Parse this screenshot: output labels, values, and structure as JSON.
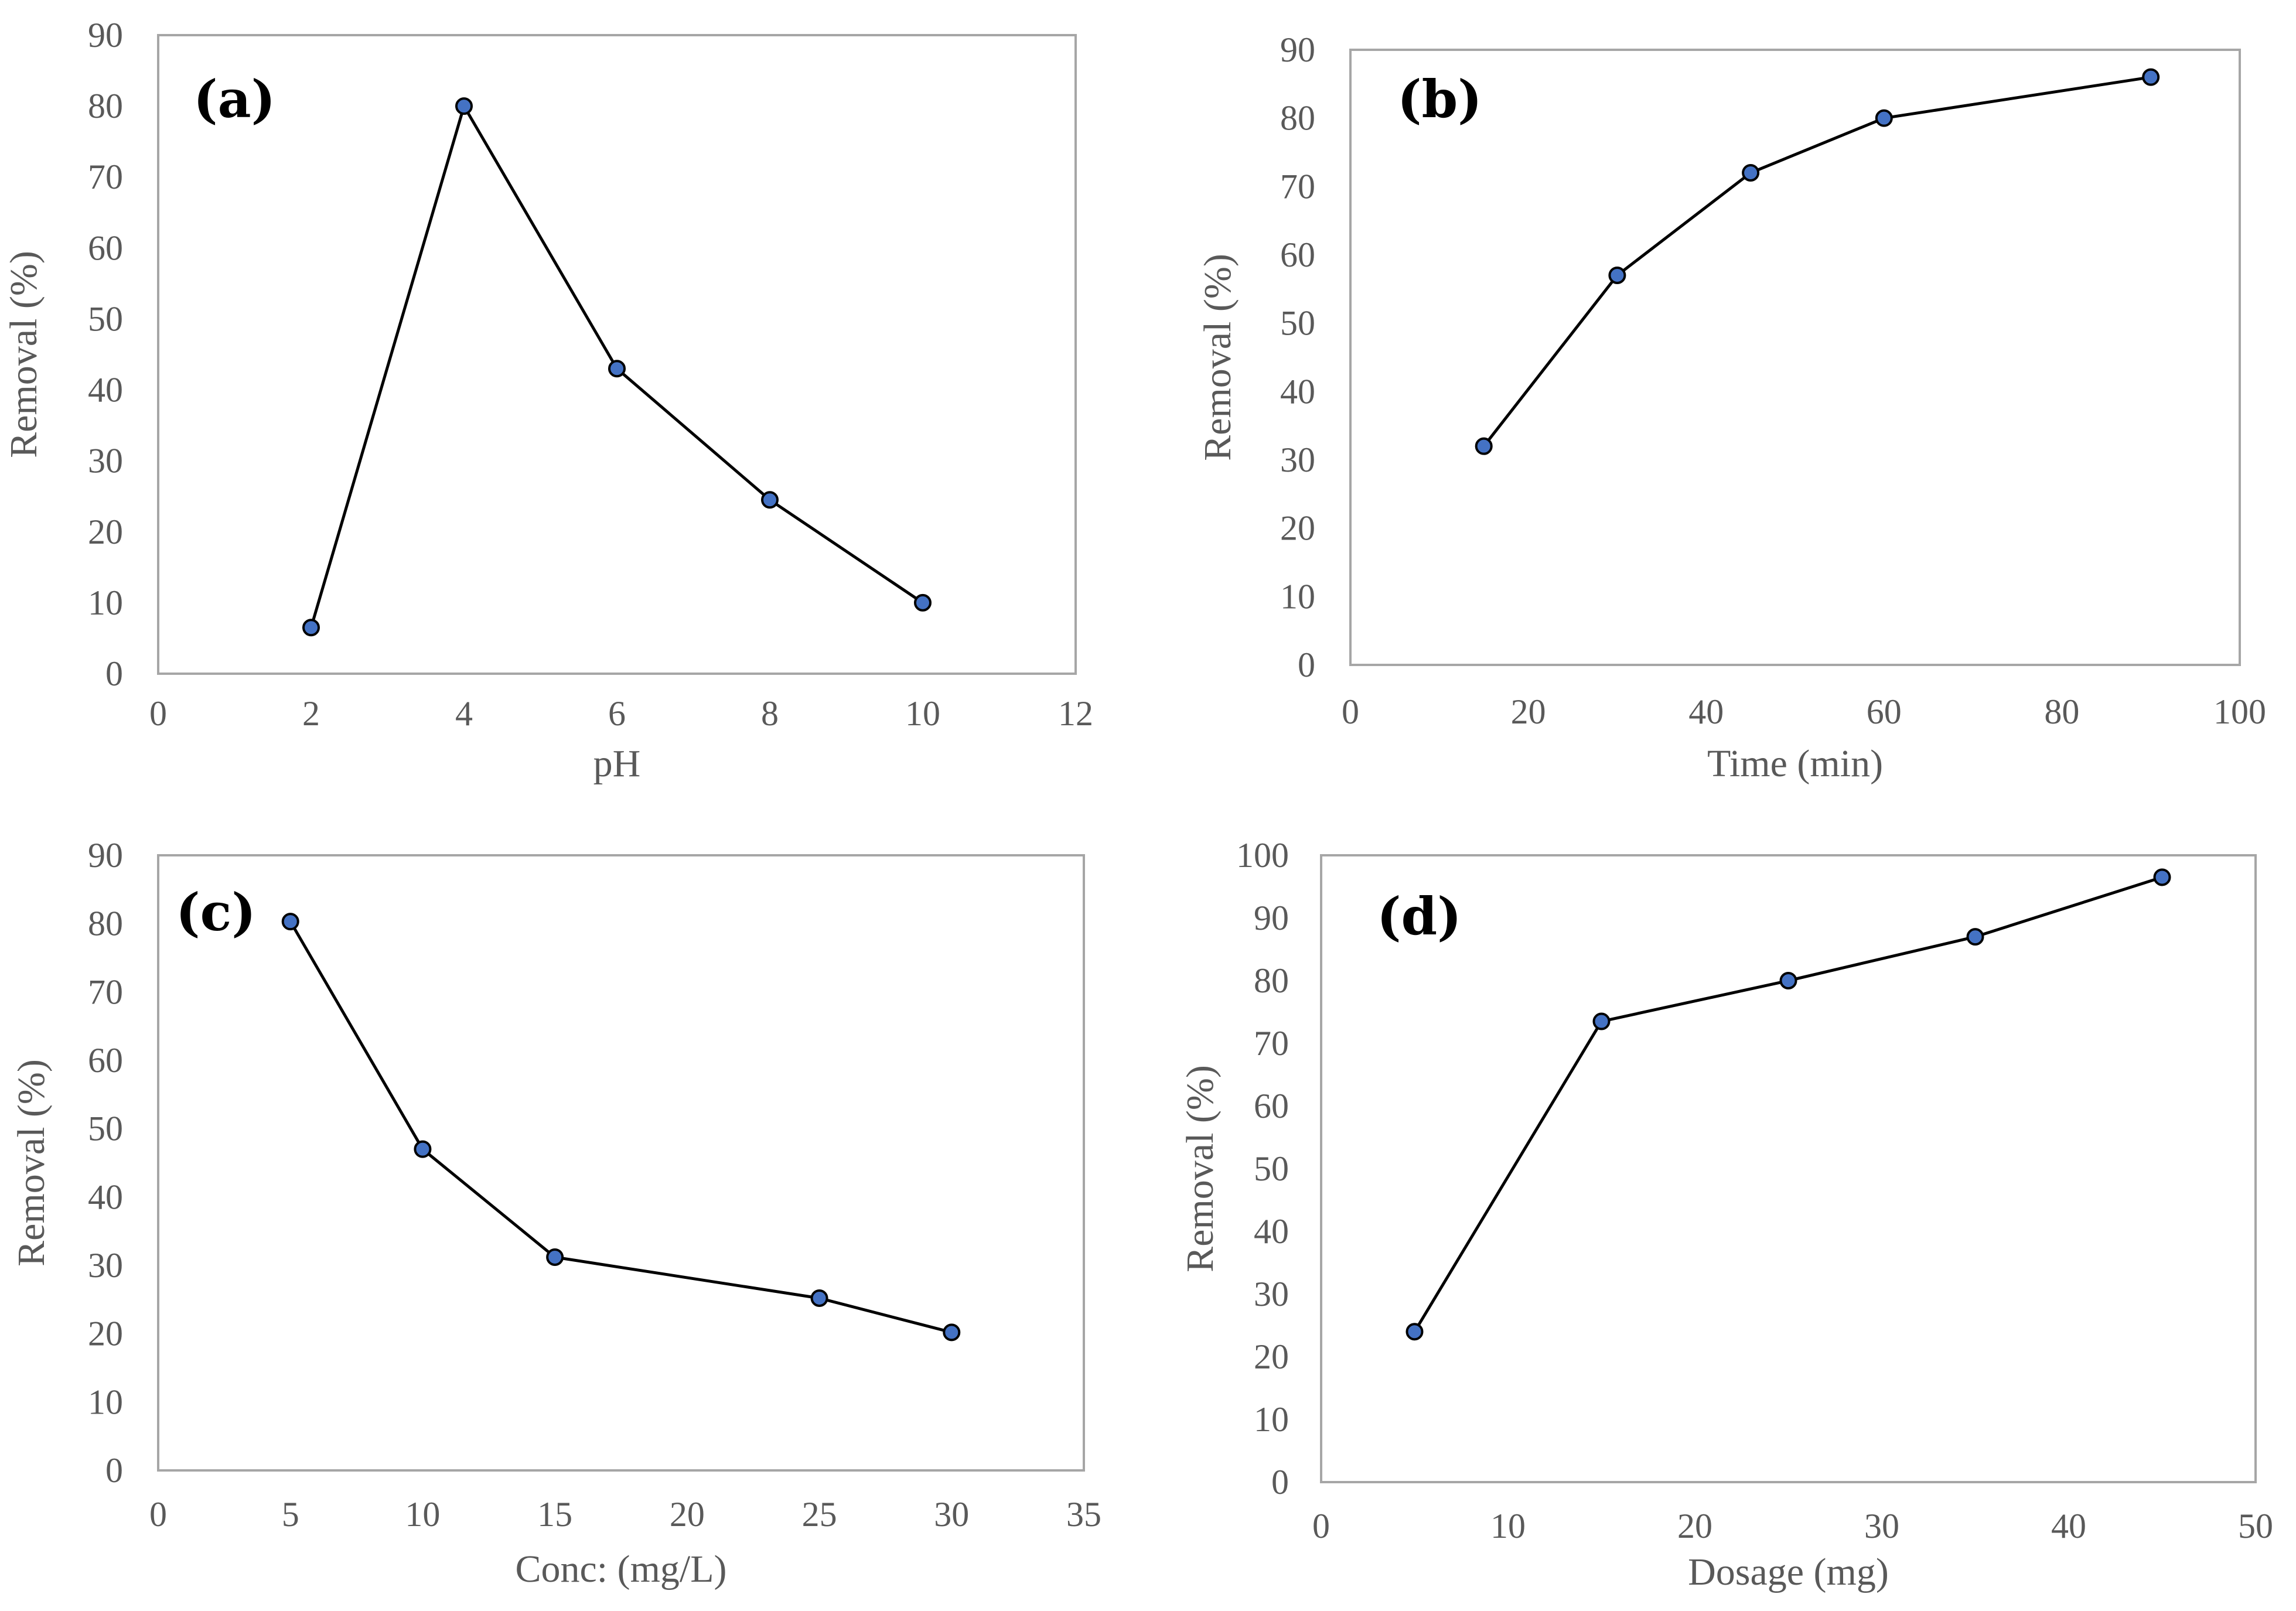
{
  "figure": {
    "background": "#ffffff",
    "series_color": "#4472c4",
    "line_color": "#000000",
    "frame_color": "#a6a6a6",
    "text_color": "#595959"
  },
  "chart_data": [
    {
      "type": "line",
      "label": "(a)",
      "xlabel": "pH",
      "ylabel": "Removal  (%)",
      "xlim": [
        0,
        12
      ],
      "xtick_step": 2,
      "ylim": [
        0,
        90
      ],
      "ytick_step": 10,
      "grid": false,
      "series": [
        {
          "name": "Removal",
          "x": [
            2,
            4,
            6,
            8,
            10
          ],
          "y": [
            6.5,
            80,
            43,
            24.5,
            10
          ]
        }
      ]
    },
    {
      "type": "line",
      "label": "(b)",
      "xlabel": "Time  (min)",
      "ylabel": "Removal  (%)",
      "xlim": [
        0,
        100
      ],
      "xtick_step": 20,
      "ylim": [
        0,
        90
      ],
      "ytick_step": 10,
      "grid": false,
      "series": [
        {
          "name": "Removal",
          "x": [
            15,
            30,
            45,
            60,
            90
          ],
          "y": [
            32,
            57,
            72,
            80,
            86
          ]
        }
      ]
    },
    {
      "type": "line",
      "label": "(c)",
      "xlabel": "Conc: (mg/L)",
      "ylabel": "Removal  (%)",
      "xlim": [
        0,
        35
      ],
      "xtick_step": 5,
      "ylim": [
        0,
        90
      ],
      "ytick_step": 10,
      "grid": false,
      "series": [
        {
          "name": "Removal",
          "x": [
            5,
            10,
            15,
            25,
            30
          ],
          "y": [
            80.3,
            47,
            31.2,
            25.2,
            20.2
          ]
        }
      ]
    },
    {
      "type": "line",
      "label": "(d)",
      "xlabel": "Dosage  (mg)",
      "ylabel": "Removal  (%)",
      "xlim": [
        0,
        50
      ],
      "xtick_step": 10,
      "ylim": [
        0,
        100
      ],
      "ytick_step": 10,
      "grid": false,
      "series": [
        {
          "name": "Removal",
          "x": [
            5,
            15,
            25,
            35,
            45
          ],
          "y": [
            24,
            73.5,
            80,
            87,
            96.5
          ]
        }
      ]
    }
  ]
}
